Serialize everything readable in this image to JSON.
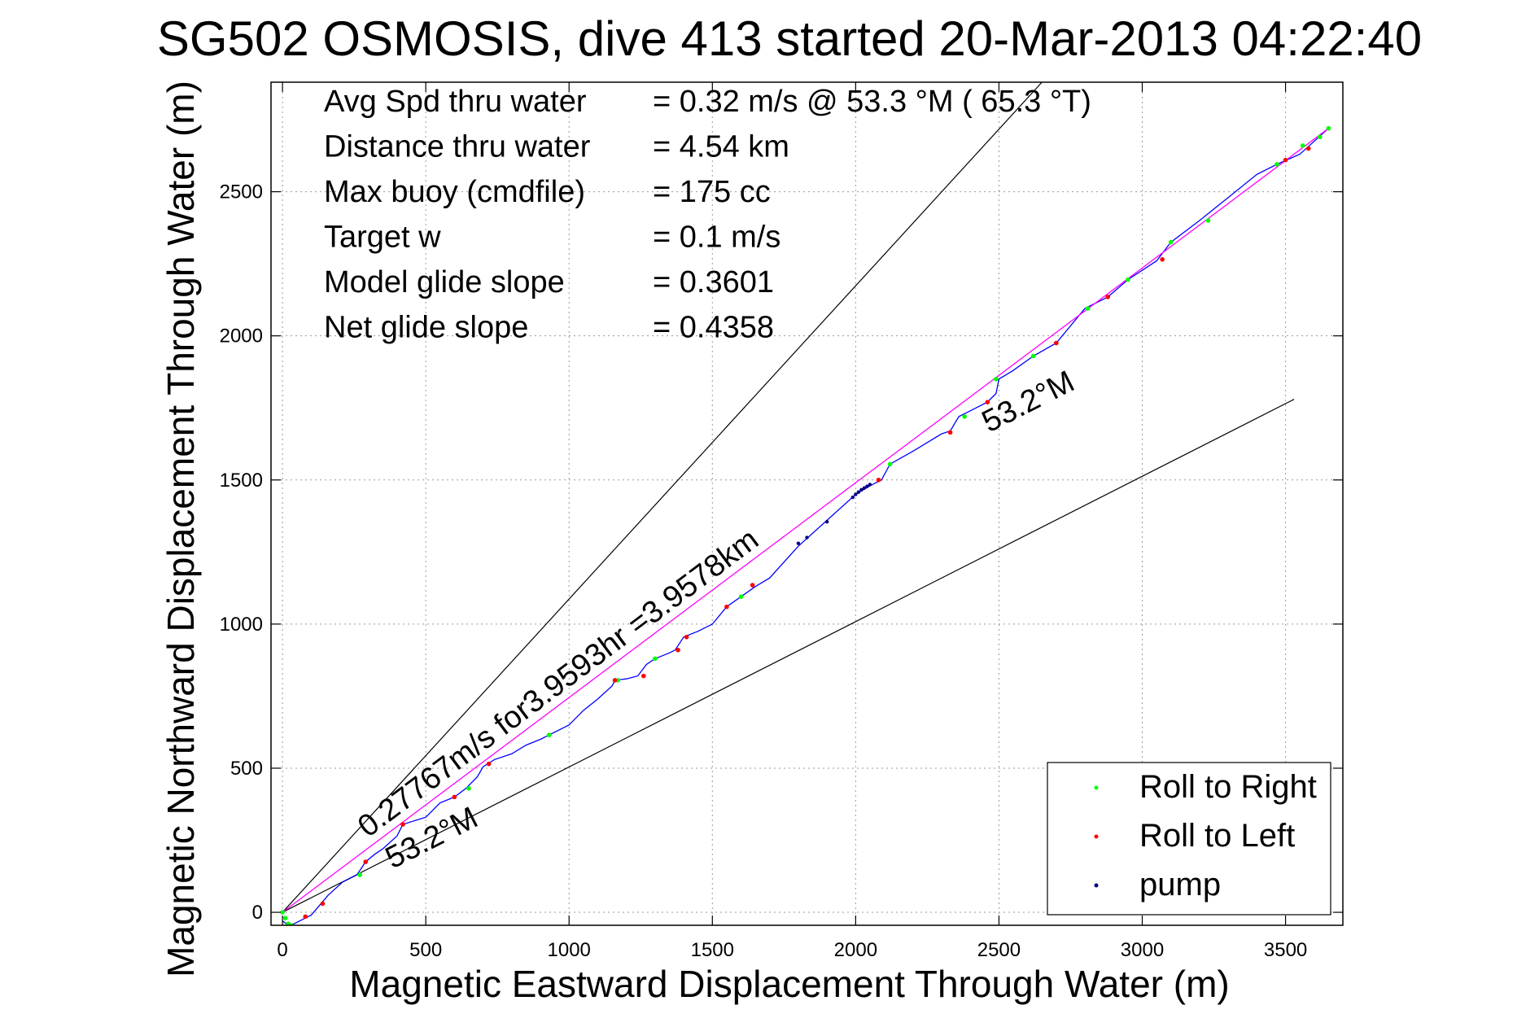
{
  "chart_data": {
    "type": "line",
    "title": "SG502 OSMOSIS, dive 413 started 20-Mar-2013 04:22:40",
    "xlabel": "Magnetic Eastward Displacement Through Water (m)",
    "ylabel": "Magnetic Northward Displacement Through Water (m)",
    "xlim": [
      -40,
      3700
    ],
    "ylim": [
      -45,
      2880
    ],
    "xticks": [
      0,
      500,
      1000,
      1500,
      2000,
      2500,
      3000,
      3500
    ],
    "yticks": [
      0,
      500,
      1000,
      1500,
      2000,
      2500
    ],
    "grid": true,
    "stats": [
      {
        "label": "Avg Spd thru water",
        "value": "=  0.32 m/s @  53.3 °M ( 65.3 °T)"
      },
      {
        "label": "Distance thru water",
        "value": "=  4.54 km"
      },
      {
        "label": "Max buoy (cmdfile)",
        "value": "= 175 cc"
      },
      {
        "label": "Target w",
        "value": "= 0.1 m/s"
      },
      {
        "label": "Model glide slope",
        "value": "= 0.3601"
      },
      {
        "label": "Net glide slope",
        "value": "= 0.4358"
      }
    ],
    "annotations": {
      "speed_text": "0.27767m/s for3.9593hr =3.9578km",
      "heading_lower": "53.2°M",
      "heading_upper": "53.2°M"
    },
    "reference_lines": [
      {
        "x": [
          0,
          2650
        ],
        "y": [
          0,
          2880
        ],
        "color": "#000000"
      },
      {
        "x": [
          0,
          3530
        ],
        "y": [
          0,
          1780
        ],
        "color": "#000000"
      }
    ],
    "series": [
      {
        "name": "track",
        "color": "#0000ff",
        "x": [
          0,
          20,
          40,
          60,
          80,
          100,
          130,
          160,
          210,
          260,
          290,
          320,
          350,
          400,
          420,
          500,
          550,
          600,
          640,
          680,
          700,
          740,
          800,
          850,
          900,
          930,
          1000,
          1050,
          1100,
          1150,
          1160,
          1200,
          1240,
          1270,
          1300,
          1350,
          1370,
          1400,
          1450,
          1470,
          1500,
          1550,
          1600,
          1650,
          1700,
          1800,
          1900,
          2000,
          2050,
          2090,
          2120,
          2200,
          2300,
          2330,
          2360,
          2400,
          2460,
          2490,
          2500,
          2550,
          2620,
          2700,
          2800,
          2880,
          2950,
          3050,
          3100,
          3200,
          3300,
          3400,
          3470,
          3550,
          3650
        ],
        "y": [
          -30,
          -45,
          -40,
          -30,
          -20,
          -10,
          25,
          60,
          105,
          130,
          175,
          200,
          220,
          265,
          305,
          330,
          380,
          400,
          430,
          470,
          505,
          530,
          550,
          580,
          600,
          615,
          650,
          700,
          740,
          785,
          805,
          810,
          820,
          860,
          880,
          900,
          910,
          955,
          975,
          985,
          1000,
          1060,
          1095,
          1130,
          1160,
          1270,
          1360,
          1450,
          1480,
          1500,
          1555,
          1600,
          1660,
          1670,
          1720,
          1740,
          1770,
          1800,
          1850,
          1880,
          1930,
          1975,
          2095,
          2135,
          2195,
          2260,
          2325,
          2400,
          2480,
          2560,
          2595,
          2630,
          2720
        ]
      },
      {
        "name": "straight course",
        "color": "#ff00ff",
        "x": [
          0,
          3650
        ],
        "y": [
          0,
          2720
        ]
      }
    ],
    "legend": {
      "position": "bottom-right",
      "entries": [
        {
          "name": "Roll to Right",
          "color": "#00ff00"
        },
        {
          "name": "Roll to Left",
          "color": "#ff0000"
        },
        {
          "name": "pump",
          "color": "#000080"
        }
      ]
    },
    "markers": {
      "roll_right": {
        "color": "#00ff00",
        "x": [
          0,
          10,
          20,
          30,
          270,
          650,
          930,
          1170,
          1300,
          1600,
          2120,
          2380,
          2490,
          2620,
          2810,
          2950,
          3100,
          3230,
          3470,
          3560,
          3620,
          3650
        ],
        "y": [
          0,
          -20,
          -40,
          -45,
          130,
          430,
          615,
          805,
          880,
          1095,
          1555,
          1720,
          1850,
          1930,
          2095,
          2195,
          2325,
          2400,
          2595,
          2660,
          2690,
          2720
        ]
      },
      "roll_left": {
        "color": "#ff0000",
        "x": [
          80,
          140,
          290,
          420,
          600,
          720,
          1160,
          1260,
          1380,
          1410,
          1550,
          1640,
          2080,
          2330,
          2460,
          2700,
          2880,
          3070,
          3500,
          3580
        ],
        "y": [
          -15,
          30,
          175,
          305,
          400,
          515,
          805,
          820,
          910,
          955,
          1060,
          1135,
          1500,
          1665,
          1770,
          1975,
          2135,
          2265,
          2610,
          2650
        ]
      },
      "pump": {
        "color": "#000080",
        "x": [
          1800,
          1830,
          1900,
          1990,
          2000,
          2010,
          2020,
          2030,
          2040,
          2050
        ],
        "y": [
          1280,
          1300,
          1355,
          1440,
          1450,
          1458,
          1466,
          1472,
          1478,
          1484
        ]
      }
    }
  }
}
